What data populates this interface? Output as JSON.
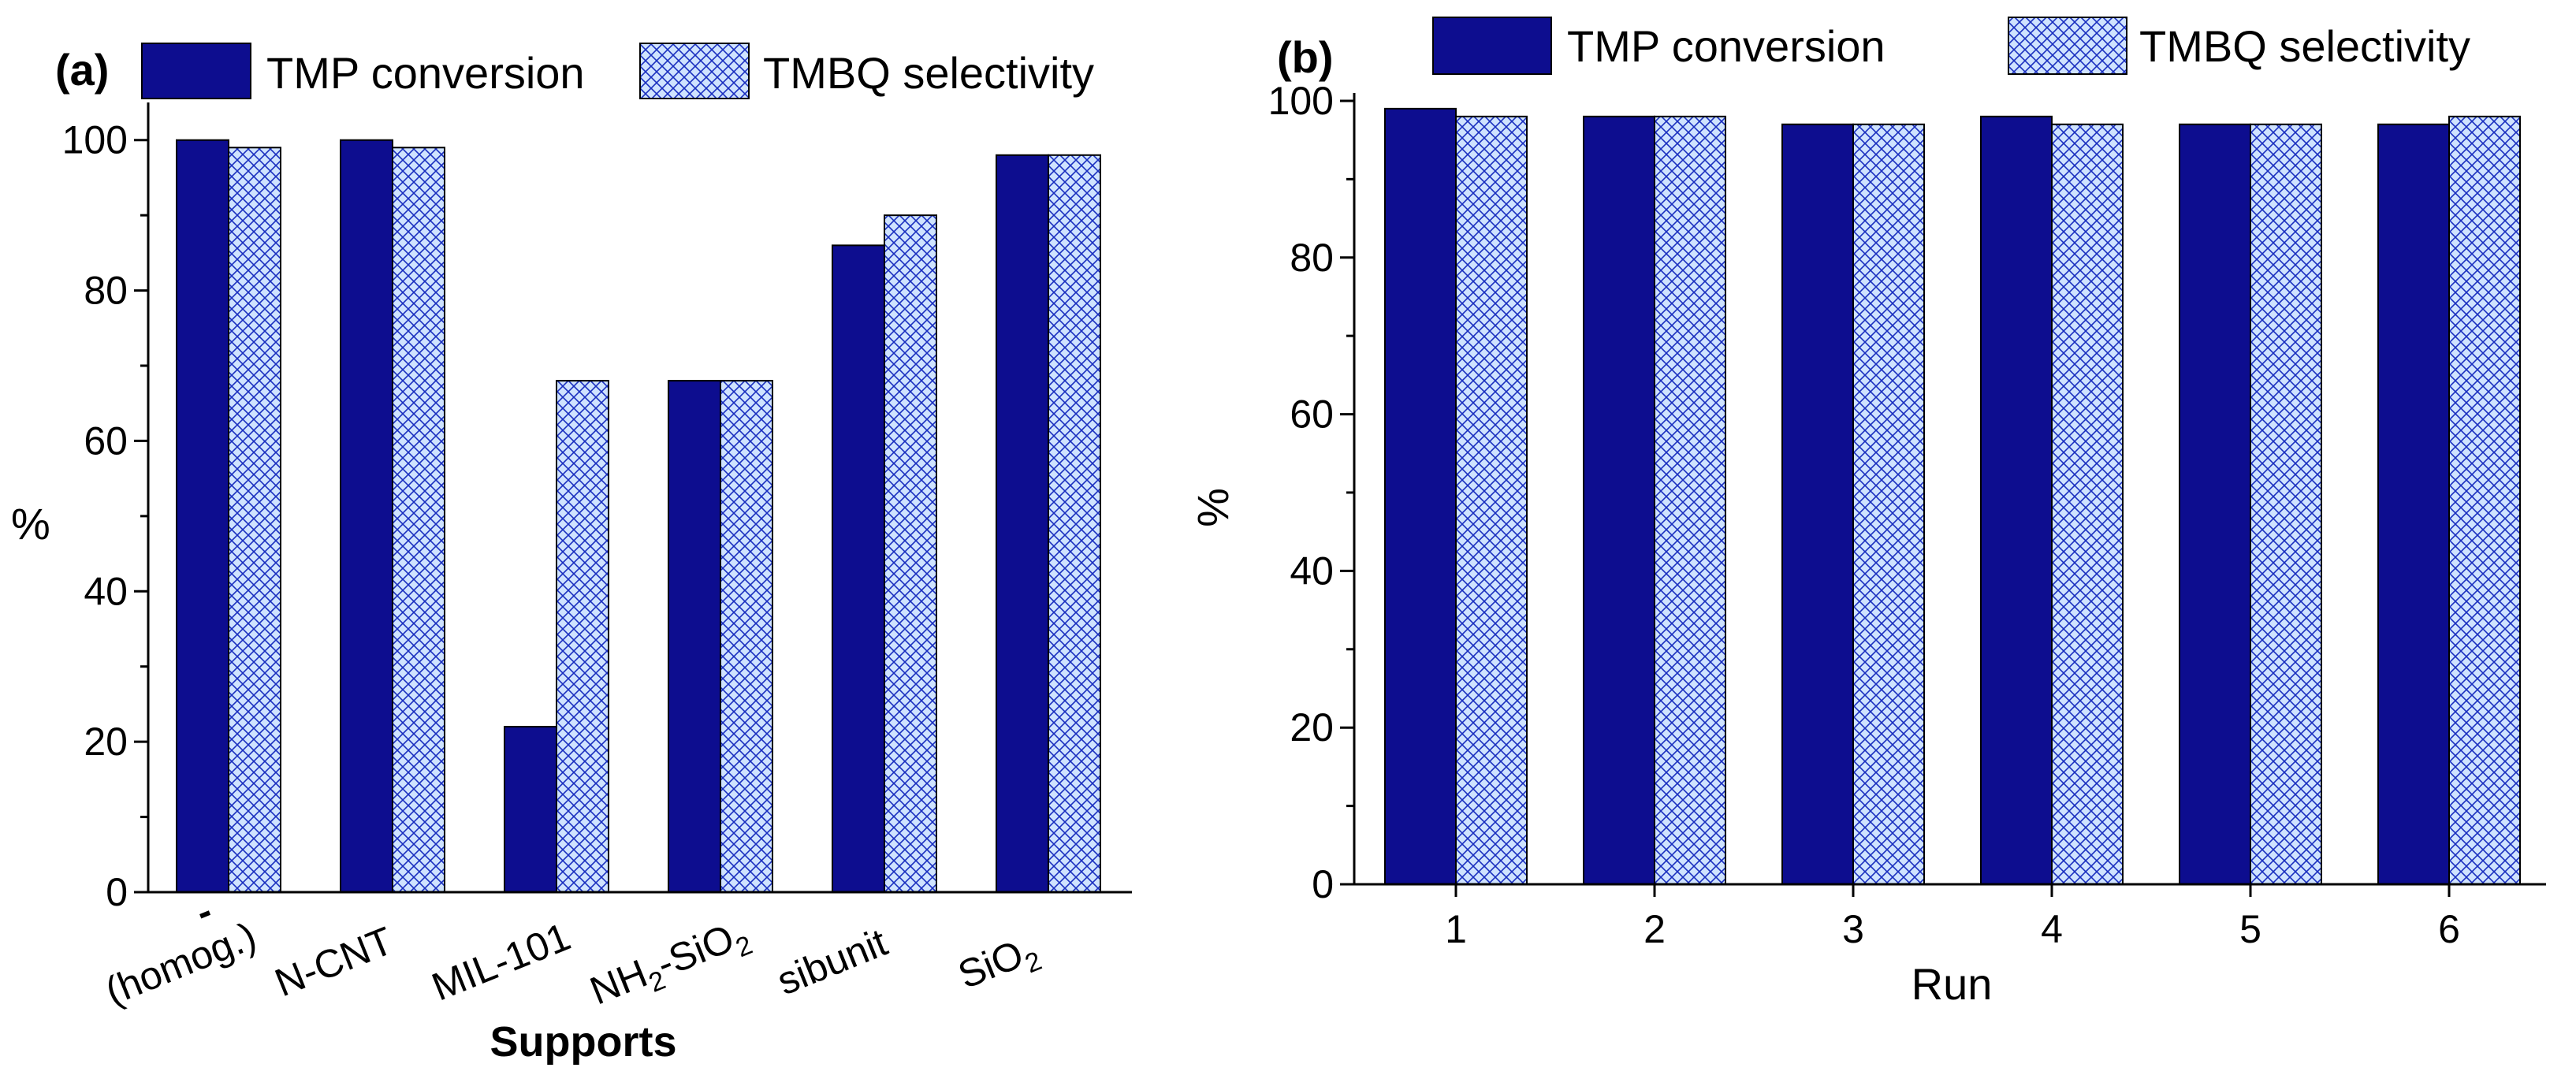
{
  "colors": {
    "conversion": "#0d0d8f",
    "selectivity_fill": "#cfe3ff",
    "selectivity_hatch": "#1a2fbf",
    "axis": "#000000"
  },
  "chart_data": [
    {
      "type": "bar",
      "panel_label": "(a)",
      "xlabel": "Supports",
      "ylabel": "%",
      "ylim": [
        0,
        105
      ],
      "yticks": [
        0,
        20,
        40,
        60,
        80,
        100
      ],
      "legend": [
        "TMP conversion",
        "TMBQ selectivity"
      ],
      "legend_position": "top",
      "categories": [
        "- (homog.)",
        "N-CNT",
        "MIL-101",
        "NH2-SiO2",
        "sibunit",
        "SiO2"
      ],
      "category_labels": {
        "homog_dash": "-",
        "homog": "(homog.)",
        "ncnt": "N-CNT",
        "mil": "MIL-101",
        "nh_a": "NH",
        "nh_sub": "2",
        "nh_b": "-SiO",
        "nh_sub2": "2",
        "sibunit": "sibunit",
        "sio": "SiO",
        "sio_sub": "2"
      },
      "series": [
        {
          "name": "TMP conversion",
          "values": [
            100,
            100,
            22,
            68,
            86,
            98
          ]
        },
        {
          "name": "TMBQ selectivity",
          "values": [
            99,
            99,
            68,
            68,
            90,
            98
          ]
        }
      ]
    },
    {
      "type": "bar",
      "panel_label": "(b)",
      "xlabel": "Run",
      "ylabel": "%",
      "ylim": [
        0,
        101
      ],
      "yticks": [
        0,
        20,
        40,
        60,
        80,
        100
      ],
      "legend": [
        "TMP conversion",
        "TMBQ selectivity"
      ],
      "legend_position": "top",
      "categories": [
        "1",
        "2",
        "3",
        "4",
        "5",
        "6"
      ],
      "series": [
        {
          "name": "TMP conversion",
          "values": [
            99,
            98,
            97,
            98,
            97,
            97
          ]
        },
        {
          "name": "TMBQ selectivity",
          "values": [
            98,
            98,
            97,
            97,
            97,
            98
          ]
        }
      ]
    }
  ]
}
